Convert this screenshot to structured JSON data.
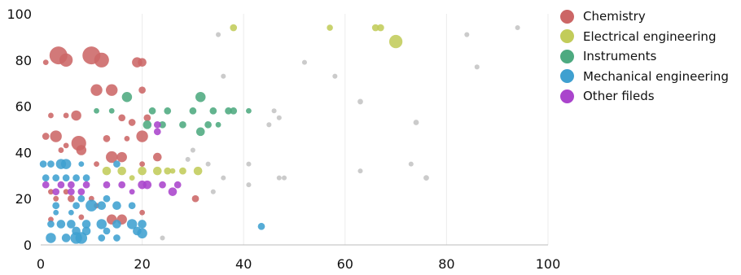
{
  "chart_data": {
    "type": "scatter",
    "title": "",
    "xlabel": "",
    "ylabel": "",
    "xlim": [
      0,
      100
    ],
    "ylim": [
      0,
      100
    ],
    "x_ticks": [
      "0",
      "20",
      "40",
      "60",
      "80",
      "100"
    ],
    "y_ticks": [
      "0",
      "20",
      "40",
      "60",
      "80",
      "100"
    ],
    "grid": "vertical",
    "legend_position": "right",
    "series": [
      {
        "name": "Chemistry",
        "color": "#cc6666",
        "points": [
          {
            "x": 3.5,
            "y": 82,
            "s": 5
          },
          {
            "x": 5,
            "y": 80,
            "s": 3.5
          },
          {
            "x": 10,
            "y": 82,
            "s": 5
          },
          {
            "x": 12,
            "y": 80,
            "s": 4
          },
          {
            "x": 1,
            "y": 79,
            "s": 1
          },
          {
            "x": 19,
            "y": 79,
            "s": 2.5
          },
          {
            "x": 20,
            "y": 79,
            "s": 2
          },
          {
            "x": 11,
            "y": 67,
            "s": 3
          },
          {
            "x": 14,
            "y": 67,
            "s": 3
          },
          {
            "x": 20,
            "y": 67,
            "s": 1.5
          },
          {
            "x": 7,
            "y": 56,
            "s": 2.5
          },
          {
            "x": 2,
            "y": 56,
            "s": 1
          },
          {
            "x": 5,
            "y": 56,
            "s": 1
          },
          {
            "x": 16,
            "y": 55,
            "s": 1.5
          },
          {
            "x": 18,
            "y": 53,
            "s": 1.5
          },
          {
            "x": 21,
            "y": 55,
            "s": 1.5
          },
          {
            "x": 3,
            "y": 47,
            "s": 3
          },
          {
            "x": 1,
            "y": 47,
            "s": 1.5
          },
          {
            "x": 20,
            "y": 47,
            "s": 3
          },
          {
            "x": 13,
            "y": 46,
            "s": 1.5
          },
          {
            "x": 17,
            "y": 46,
            "s": 1
          },
          {
            "x": 7.5,
            "y": 44,
            "s": 4
          },
          {
            "x": 8,
            "y": 41,
            "s": 2.5
          },
          {
            "x": 5,
            "y": 43,
            "s": 1
          },
          {
            "x": 4,
            "y": 41,
            "s": 1
          },
          {
            "x": 14,
            "y": 38,
            "s": 3
          },
          {
            "x": 16,
            "y": 38,
            "s": 2.5
          },
          {
            "x": 23,
            "y": 38,
            "s": 2
          },
          {
            "x": 20,
            "y": 35,
            "s": 1
          },
          {
            "x": 11,
            "y": 35,
            "s": 1
          },
          {
            "x": 2,
            "y": 23,
            "s": 1
          },
          {
            "x": 5,
            "y": 23,
            "s": 1
          },
          {
            "x": 3,
            "y": 20,
            "s": 1
          },
          {
            "x": 6,
            "y": 20,
            "s": 1.5
          },
          {
            "x": 10,
            "y": 20,
            "s": 1
          },
          {
            "x": 30.5,
            "y": 20,
            "s": 1.5
          },
          {
            "x": 14,
            "y": 11,
            "s": 2.5
          },
          {
            "x": 16,
            "y": 11,
            "s": 2.5
          },
          {
            "x": 2,
            "y": 11,
            "s": 1
          },
          {
            "x": 8,
            "y": 12,
            "s": 1
          },
          {
            "x": 20,
            "y": 14,
            "s": 1
          },
          {
            "x": 11,
            "y": 17,
            "s": 1
          }
        ]
      },
      {
        "name": "Electrical engineering",
        "color": "#c2cc5a",
        "points": [
          {
            "x": 38,
            "y": 94,
            "s": 1.5
          },
          {
            "x": 57,
            "y": 94,
            "s": 1.2
          },
          {
            "x": 66,
            "y": 94,
            "s": 1.5
          },
          {
            "x": 67,
            "y": 94,
            "s": 1.5
          },
          {
            "x": 70,
            "y": 88,
            "s": 3.5
          },
          {
            "x": 13,
            "y": 32,
            "s": 2
          },
          {
            "x": 16,
            "y": 32,
            "s": 2
          },
          {
            "x": 20,
            "y": 32,
            "s": 2
          },
          {
            "x": 23,
            "y": 32,
            "s": 2
          },
          {
            "x": 25,
            "y": 32,
            "s": 1.5
          },
          {
            "x": 28,
            "y": 32,
            "s": 1.5
          },
          {
            "x": 31,
            "y": 32,
            "s": 2
          },
          {
            "x": 18,
            "y": 29,
            "s": 1
          },
          {
            "x": 26,
            "y": 32,
            "s": 1
          }
        ]
      },
      {
        "name": "Instruments",
        "color": "#4daa80",
        "points": [
          {
            "x": 17,
            "y": 64,
            "s": 2.5
          },
          {
            "x": 31.5,
            "y": 64,
            "s": 2.5
          },
          {
            "x": 25,
            "y": 58,
            "s": 1.5
          },
          {
            "x": 30,
            "y": 58,
            "s": 1.5
          },
          {
            "x": 34,
            "y": 58,
            "s": 1.5
          },
          {
            "x": 37,
            "y": 58,
            "s": 1.5
          },
          {
            "x": 38,
            "y": 58,
            "s": 1.5
          },
          {
            "x": 41,
            "y": 58,
            "s": 1
          },
          {
            "x": 22,
            "y": 58,
            "s": 1.5
          },
          {
            "x": 11,
            "y": 58,
            "s": 1
          },
          {
            "x": 14,
            "y": 58,
            "s": 1
          },
          {
            "x": 21,
            "y": 52,
            "s": 2
          },
          {
            "x": 24,
            "y": 52,
            "s": 1.5
          },
          {
            "x": 28,
            "y": 52,
            "s": 1.5
          },
          {
            "x": 33,
            "y": 52,
            "s": 1.5
          },
          {
            "x": 35,
            "y": 52,
            "s": 1
          },
          {
            "x": 31.5,
            "y": 49,
            "s": 2
          }
        ]
      },
      {
        "name": "Mechanical engineering",
        "color": "#3fa0d0",
        "points": [
          {
            "x": 4,
            "y": 35,
            "s": 2.5
          },
          {
            "x": 5,
            "y": 35,
            "s": 2.5
          },
          {
            "x": 0.5,
            "y": 35,
            "s": 1.5
          },
          {
            "x": 2,
            "y": 35,
            "s": 1.5
          },
          {
            "x": 8,
            "y": 35,
            "s": 1
          },
          {
            "x": 15,
            "y": 35,
            "s": 1.5
          },
          {
            "x": 1,
            "y": 29,
            "s": 1.5
          },
          {
            "x": 3,
            "y": 29,
            "s": 1.5
          },
          {
            "x": 5,
            "y": 29,
            "s": 1.5
          },
          {
            "x": 7,
            "y": 29,
            "s": 1.5
          },
          {
            "x": 9,
            "y": 29,
            "s": 1.5
          },
          {
            "x": 10,
            "y": 17,
            "s": 3
          },
          {
            "x": 12,
            "y": 17,
            "s": 2
          },
          {
            "x": 13,
            "y": 20,
            "s": 1.5
          },
          {
            "x": 15,
            "y": 17,
            "s": 2
          },
          {
            "x": 7,
            "y": 17,
            "s": 1.5
          },
          {
            "x": 3,
            "y": 17,
            "s": 1.5
          },
          {
            "x": 8,
            "y": 20,
            "s": 1.5
          },
          {
            "x": 18,
            "y": 17,
            "s": 1.5
          },
          {
            "x": 4,
            "y": 9,
            "s": 2
          },
          {
            "x": 6,
            "y": 9,
            "s": 2
          },
          {
            "x": 9,
            "y": 9,
            "s": 2
          },
          {
            "x": 12,
            "y": 9,
            "s": 2.5
          },
          {
            "x": 15,
            "y": 9,
            "s": 2
          },
          {
            "x": 18,
            "y": 9,
            "s": 2.5
          },
          {
            "x": 20,
            "y": 9,
            "s": 2
          },
          {
            "x": 2,
            "y": 9,
            "s": 1.5
          },
          {
            "x": 7,
            "y": 6,
            "s": 2
          },
          {
            "x": 9,
            "y": 6,
            "s": 2
          },
          {
            "x": 13,
            "y": 6,
            "s": 1.5
          },
          {
            "x": 19,
            "y": 6,
            "s": 2
          },
          {
            "x": 20,
            "y": 5,
            "s": 2.5
          },
          {
            "x": 2,
            "y": 3,
            "s": 2.5
          },
          {
            "x": 7,
            "y": 3,
            "s": 3
          },
          {
            "x": 8,
            "y": 3,
            "s": 3
          },
          {
            "x": 5,
            "y": 3,
            "s": 2
          },
          {
            "x": 12,
            "y": 3,
            "s": 1.5
          },
          {
            "x": 15,
            "y": 3,
            "s": 1.5
          },
          {
            "x": 43.5,
            "y": 8,
            "s": 1.5
          },
          {
            "x": 3,
            "y": 14,
            "s": 1
          },
          {
            "x": 6,
            "y": 14,
            "s": 1
          }
        ]
      },
      {
        "name": "Other fileds",
        "color": "#aa44cc",
        "points": [
          {
            "x": 23,
            "y": 52,
            "s": 1.5
          },
          {
            "x": 23,
            "y": 49,
            "s": 1.5
          },
          {
            "x": 1,
            "y": 26,
            "s": 1.5
          },
          {
            "x": 4,
            "y": 26,
            "s": 1.5
          },
          {
            "x": 6,
            "y": 26,
            "s": 1.5
          },
          {
            "x": 9,
            "y": 26,
            "s": 1.5
          },
          {
            "x": 13,
            "y": 26,
            "s": 1.5
          },
          {
            "x": 16,
            "y": 26,
            "s": 1.5
          },
          {
            "x": 20,
            "y": 26,
            "s": 2
          },
          {
            "x": 21,
            "y": 26,
            "s": 2
          },
          {
            "x": 24,
            "y": 26,
            "s": 1.5
          },
          {
            "x": 27,
            "y": 26,
            "s": 1.5
          },
          {
            "x": 26,
            "y": 23,
            "s": 2
          },
          {
            "x": 3,
            "y": 23,
            "s": 1.5
          },
          {
            "x": 6,
            "y": 23,
            "s": 1.5
          },
          {
            "x": 8,
            "y": 23,
            "s": 1.5
          },
          {
            "x": 18,
            "y": 23,
            "s": 1
          }
        ]
      },
      {
        "name": "",
        "color": "#b5b5b5",
        "points": [
          {
            "x": 35,
            "y": 91,
            "s": 0.8
          },
          {
            "x": 84,
            "y": 91,
            "s": 0.8
          },
          {
            "x": 94,
            "y": 94,
            "s": 0.8
          },
          {
            "x": 52,
            "y": 79,
            "s": 0.8
          },
          {
            "x": 86,
            "y": 77,
            "s": 0.8
          },
          {
            "x": 36,
            "y": 73,
            "s": 0.8
          },
          {
            "x": 58,
            "y": 73,
            "s": 0.8
          },
          {
            "x": 63,
            "y": 62,
            "s": 1
          },
          {
            "x": 47,
            "y": 55,
            "s": 0.8
          },
          {
            "x": 74,
            "y": 53,
            "s": 1
          },
          {
            "x": 29,
            "y": 37,
            "s": 0.8
          },
          {
            "x": 33,
            "y": 35,
            "s": 0.8
          },
          {
            "x": 41,
            "y": 35,
            "s": 0.8
          },
          {
            "x": 47,
            "y": 29,
            "s": 0.8
          },
          {
            "x": 48,
            "y": 29,
            "s": 0.8
          },
          {
            "x": 63,
            "y": 32,
            "s": 0.8
          },
          {
            "x": 73,
            "y": 35,
            "s": 0.8
          },
          {
            "x": 76,
            "y": 29,
            "s": 1
          },
          {
            "x": 41,
            "y": 26,
            "s": 0.8
          },
          {
            "x": 34,
            "y": 23,
            "s": 0.8
          },
          {
            "x": 36,
            "y": 29,
            "s": 0.8
          },
          {
            "x": 24,
            "y": 3,
            "s": 0.8
          },
          {
            "x": 30,
            "y": 41,
            "s": 0.8
          },
          {
            "x": 45,
            "y": 52,
            "s": 0.8
          },
          {
            "x": 46,
            "y": 58,
            "s": 0.8
          }
        ]
      }
    ]
  }
}
